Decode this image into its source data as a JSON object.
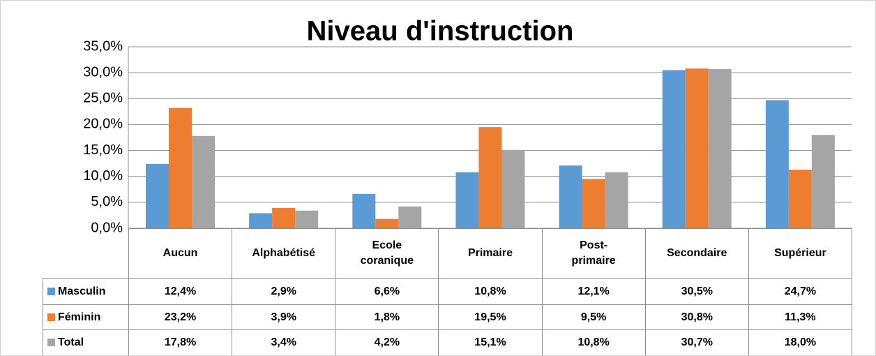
{
  "chart_data": {
    "type": "bar",
    "title": "Niveau d'instruction",
    "categories": [
      "Aucun",
      "Alphabétisé",
      "Ecole coranique",
      "Primaire",
      "Post-primaire",
      "Secondaire",
      "Supérieur"
    ],
    "series": [
      {
        "name": "Masculin",
        "color": "#5b9bd5",
        "values": [
          12.4,
          2.9,
          6.6,
          10.8,
          12.1,
          30.5,
          24.7
        ],
        "value_labels": [
          "12,4%",
          "2,9%",
          "6,6%",
          "10,8%",
          "12,1%",
          "30,5%",
          "24,7%"
        ]
      },
      {
        "name": "Féminin",
        "color": "#ed7d31",
        "values": [
          23.2,
          3.9,
          1.8,
          19.5,
          9.5,
          30.8,
          11.3
        ],
        "value_labels": [
          "23,2%",
          "3,9%",
          "1,8%",
          "19,5%",
          "9,5%",
          "30,8%",
          "11,3%"
        ]
      },
      {
        "name": "Total",
        "color": "#a5a5a5",
        "values": [
          17.8,
          3.4,
          4.2,
          15.1,
          10.8,
          30.7,
          18.0
        ],
        "value_labels": [
          "17,8%",
          "3,4%",
          "4,2%",
          "15,1%",
          "10,8%",
          "30,7%",
          "18,0%"
        ]
      }
    ],
    "ylim": [
      0,
      35
    ],
    "yticks": [
      {
        "value": 0,
        "label": "0,0%"
      },
      {
        "value": 5,
        "label": "5,0%"
      },
      {
        "value": 10,
        "label": "10,0%"
      },
      {
        "value": 15,
        "label": "15,0%"
      },
      {
        "value": 20,
        "label": "20,0%"
      },
      {
        "value": 25,
        "label": "25,0%"
      },
      {
        "value": 30,
        "label": "30,0%"
      },
      {
        "value": 35,
        "label": "35,0%"
      }
    ],
    "grid": true
  }
}
